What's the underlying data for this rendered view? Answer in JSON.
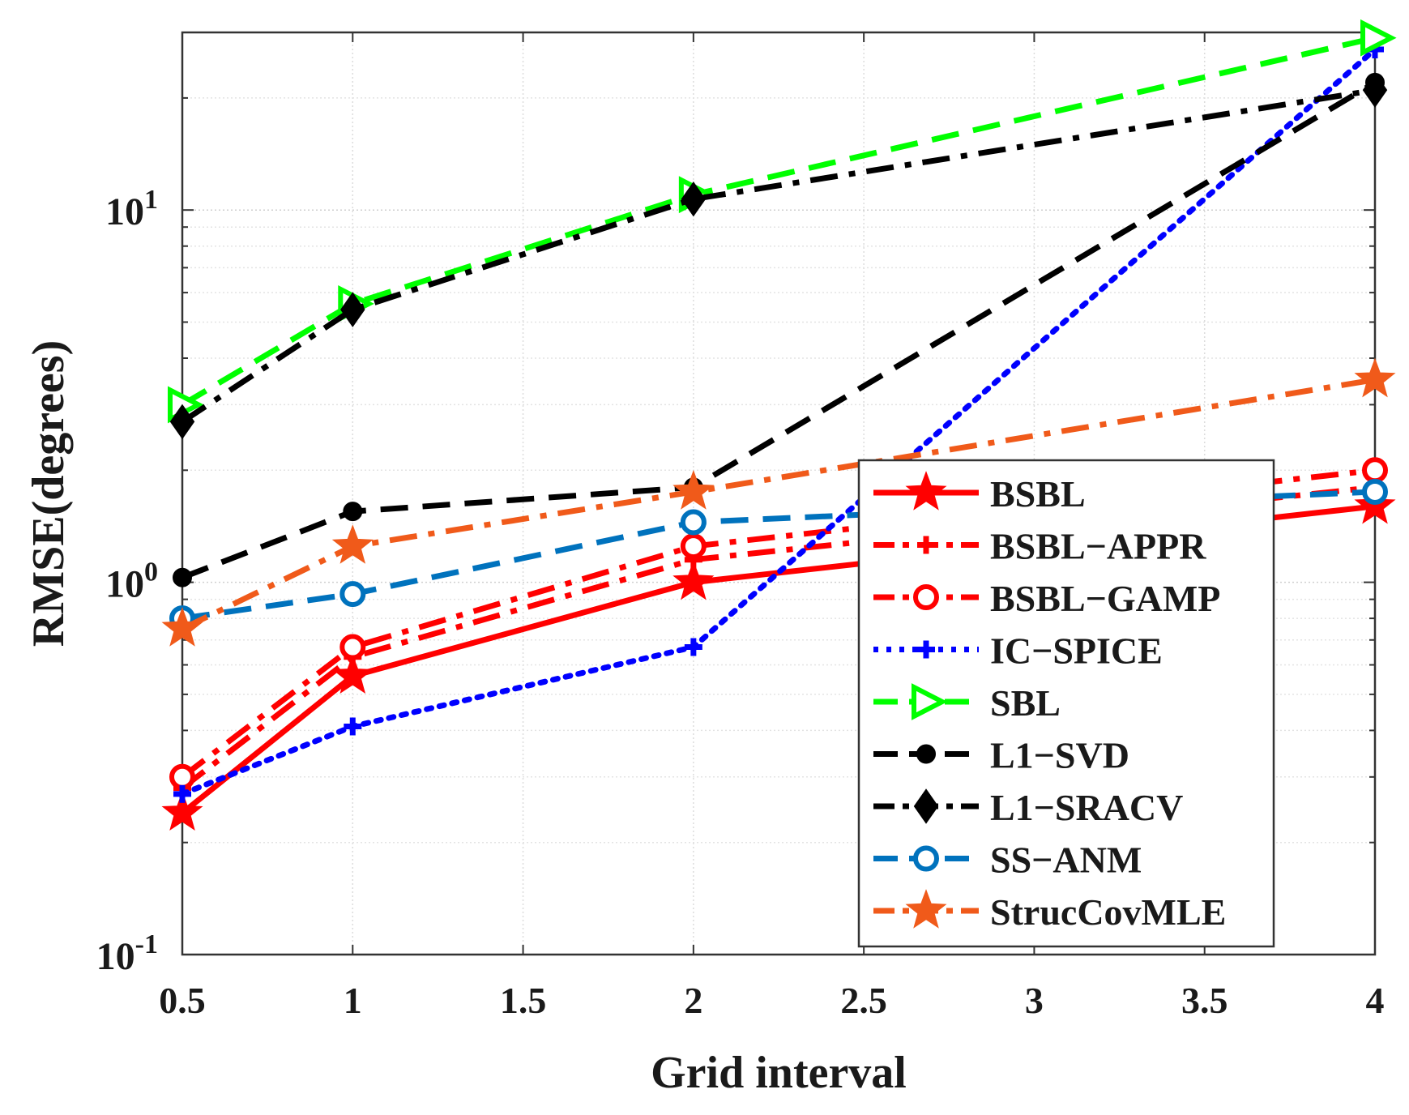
{
  "chart_data": {
    "type": "line",
    "title": "",
    "xlabel": "Grid interval",
    "ylabel": "RMSE(degrees)",
    "x_scale": "linear",
    "y_scale": "log",
    "xlim": [
      0.5,
      4
    ],
    "ylim": [
      0.1,
      30
    ],
    "grid": true,
    "legend_position": "bottom-right",
    "x_ticks": [
      0.5,
      1,
      1.5,
      2,
      2.5,
      3,
      3.5,
      4
    ],
    "x_tick_labels": [
      "0.5",
      "1",
      "1.5",
      "2",
      "2.5",
      "3",
      "3.5",
      "4"
    ],
    "y_ticks": [
      {
        "value": 0.1,
        "base": "10",
        "exp": "-1"
      },
      {
        "value": 1,
        "base": "10",
        "exp": "0"
      },
      {
        "value": 10,
        "base": "10",
        "exp": "1"
      }
    ],
    "x": [
      0.5,
      1,
      2,
      4
    ],
    "series": [
      {
        "name": "BSBL",
        "values": [
          0.24,
          0.56,
          1.0,
          1.6
        ],
        "color": "#ff0000",
        "dash": "solid",
        "marker": "star"
      },
      {
        "name": "BSBL−APPR",
        "values": [
          0.28,
          0.63,
          1.15,
          1.8
        ],
        "color": "#ff0000",
        "dash": "dashdot",
        "marker": "plus"
      },
      {
        "name": "BSBL−GAMP",
        "values": [
          0.3,
          0.67,
          1.25,
          2.0
        ],
        "color": "#ff0000",
        "dash": "dashdot",
        "marker": "circle"
      },
      {
        "name": "IC−SPICE",
        "values": [
          0.27,
          0.41,
          0.67,
          27.0
        ],
        "color": "#0000ff",
        "dash": "dotted",
        "marker": "plus"
      },
      {
        "name": "SBL",
        "values": [
          3.0,
          5.6,
          11.0,
          29.0
        ],
        "color": "#00ff00",
        "dash": "dashed",
        "marker": "triangle-right"
      },
      {
        "name": "L1−SVD",
        "values": [
          1.03,
          1.55,
          1.8,
          22.0
        ],
        "color": "#000000",
        "dash": "dashed",
        "marker": "dot"
      },
      {
        "name": "L1−SRACV",
        "values": [
          2.7,
          5.4,
          10.7,
          21.0
        ],
        "color": "#000000",
        "dash": "dashdot",
        "marker": "diamond"
      },
      {
        "name": "SS−ANM",
        "values": [
          0.8,
          0.93,
          1.45,
          1.75
        ],
        "color": "#0072bd",
        "dash": "dashed",
        "marker": "circle"
      },
      {
        "name": "StrucCovMLE",
        "values": [
          0.75,
          1.25,
          1.75,
          3.5
        ],
        "color": "#f05a1a",
        "dash": "dashdot",
        "marker": "star"
      }
    ]
  }
}
